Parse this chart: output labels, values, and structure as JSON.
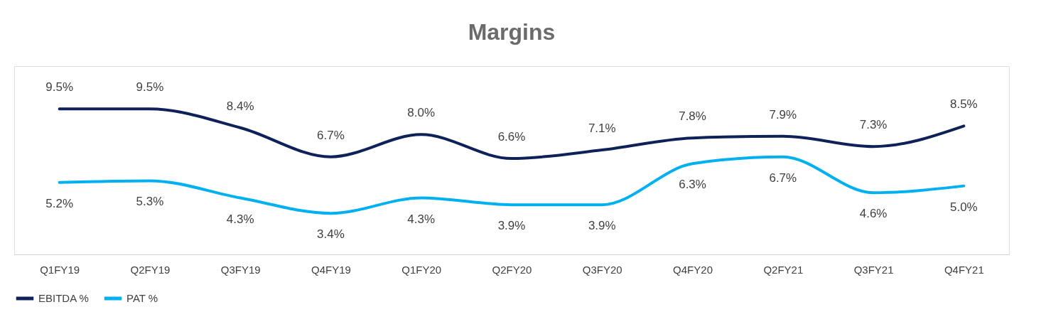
{
  "chart_data": {
    "type": "line",
    "title": "Margins",
    "categories": [
      "Q1FY19",
      "Q2FY19",
      "Q3FY19",
      "Q4FY19",
      "Q1FY20",
      "Q2FY20",
      "Q3FY20",
      "Q4FY20",
      "Q2FY21",
      "Q3FY21",
      "Q4FY21"
    ],
    "series": [
      {
        "name": "EBITDA %",
        "color": "#0e2158",
        "values": [
          9.5,
          9.5,
          8.4,
          6.7,
          8.0,
          6.6,
          7.1,
          7.8,
          7.9,
          7.3,
          8.5
        ],
        "value_labels": [
          "9.5%",
          "9.5%",
          "8.4%",
          "6.7%",
          "8.0%",
          "6.6%",
          "7.1%",
          "7.8%",
          "7.9%",
          "7.3%",
          "8.5%"
        ]
      },
      {
        "name": "PAT %",
        "color": "#00b0f0",
        "values": [
          5.2,
          5.3,
          4.3,
          3.4,
          4.3,
          3.9,
          3.9,
          6.3,
          6.7,
          4.6,
          5.0
        ],
        "value_labels": [
          "5.2%",
          "5.3%",
          "4.3%",
          "3.4%",
          "4.3%",
          "3.9%",
          "3.9%",
          "6.3%",
          "6.7%",
          "4.6%",
          "5.0%"
        ]
      }
    ],
    "legend": "bottom",
    "grid": false,
    "marker": "none",
    "line_style": "solid"
  }
}
